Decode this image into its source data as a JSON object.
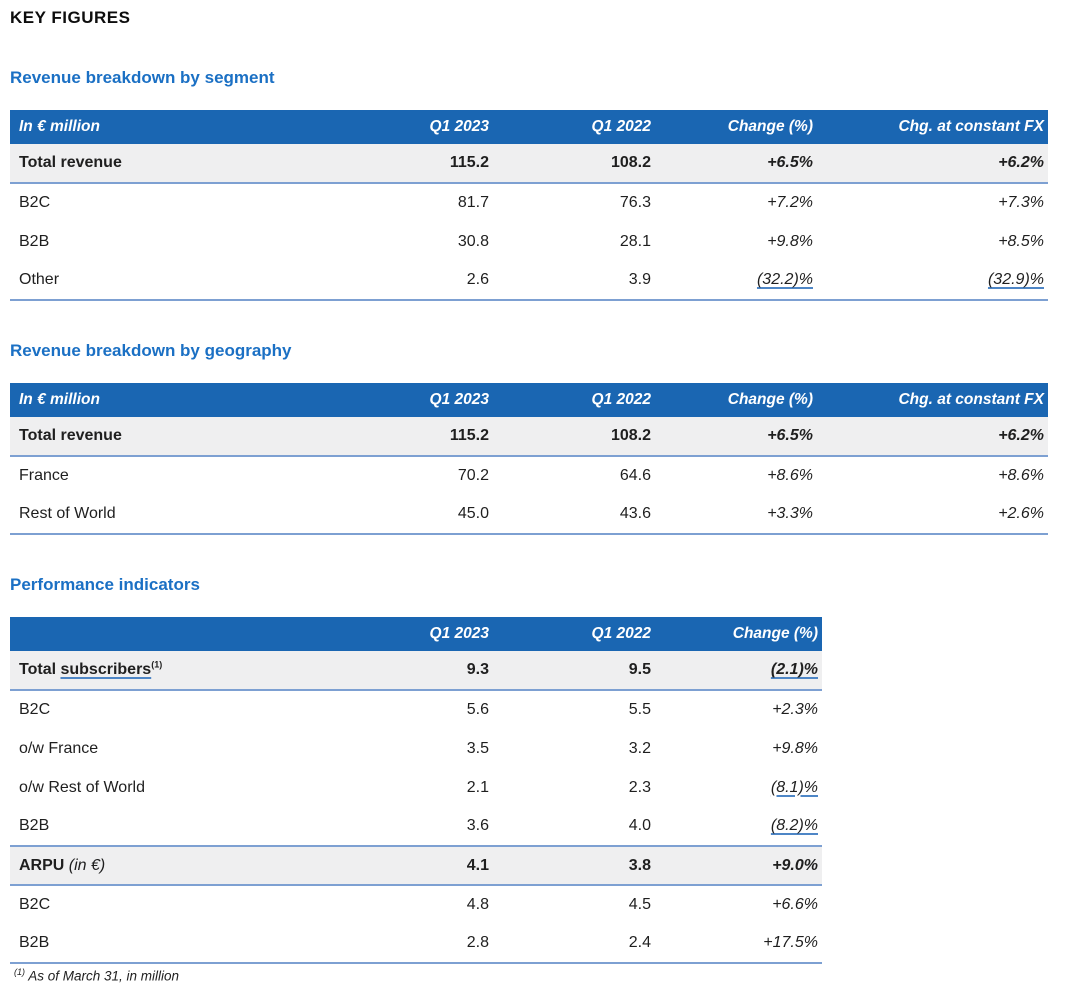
{
  "header": {
    "title": "KEY FIGURES"
  },
  "colors": {
    "accent_blue": "#1a66b2",
    "title_blue": "#1b70c4",
    "row_highlight": "#efeff0",
    "rule_blue": "#7da0d2",
    "underline_blue": "#4e86c6"
  },
  "tables": [
    {
      "section_title": "Revenue breakdown by segment",
      "unit_label": "In € million",
      "columns": [
        "Q1 2023",
        "Q1 2022",
        "Change (%)",
        "Chg. at constant FX"
      ],
      "rows": [
        {
          "label": "Total revenue",
          "emphasis": true,
          "values": [
            "115.2",
            "108.2",
            "+6.5%",
            "+6.2%"
          ]
        },
        {
          "label": "B2C",
          "values": [
            "81.7",
            "76.3",
            "+7.2%",
            "+7.3%"
          ]
        },
        {
          "label": "B2B",
          "values": [
            "30.8",
            "28.1",
            "+9.8%",
            "+8.5%"
          ]
        },
        {
          "label": "Other",
          "values": [
            "2.6",
            "3.9",
            "(32.2)%",
            "(32.9)%"
          ]
        }
      ]
    },
    {
      "section_title": "Revenue breakdown by geography",
      "unit_label": "In € million",
      "columns": [
        "Q1 2023",
        "Q1 2022",
        "Change (%)",
        "Chg. at constant FX"
      ],
      "rows": [
        {
          "label": "Total revenue",
          "emphasis": true,
          "values": [
            "115.2",
            "108.2",
            "+6.5%",
            "+6.2%"
          ]
        },
        {
          "label": "France",
          "values": [
            "70.2",
            "64.6",
            "+8.6%",
            "+8.6%"
          ]
        },
        {
          "label": "Rest of World",
          "values": [
            "45.0",
            "43.6",
            "+3.3%",
            "+2.6%"
          ]
        }
      ]
    },
    {
      "section_title": "Performance indicators",
      "unit_label": "",
      "columns": [
        "Q1 2023",
        "Q1 2022",
        "Change (%)"
      ],
      "rows": [
        {
          "label_parts": [
            {
              "text": "Total "
            },
            {
              "text": "subscribers",
              "underline": true
            }
          ],
          "sup": "(1)",
          "emphasis": true,
          "values": [
            "9.3",
            "9.5",
            "(2.1)%"
          ]
        },
        {
          "label": "B2C",
          "values": [
            "5.6",
            "5.5",
            "+2.3%"
          ]
        },
        {
          "label": "o/w France",
          "values": [
            "3.5",
            "3.2",
            "+9.8%"
          ]
        },
        {
          "label": "o/w Rest of World",
          "values": [
            "2.1",
            "2.3",
            "(8.1)%"
          ]
        },
        {
          "label": "B2B",
          "values": [
            "3.6",
            "4.0",
            "(8.2)%"
          ]
        },
        {
          "label_parts": [
            {
              "text": "ARPU"
            },
            {
              "text": " (in €)",
              "italic": true
            }
          ],
          "emphasis": true,
          "values": [
            "4.1",
            "3.8",
            "+9.0%"
          ]
        },
        {
          "label": "B2C",
          "values": [
            "4.8",
            "4.5",
            "+6.6%"
          ]
        },
        {
          "label": "B2B",
          "values": [
            "2.8",
            "2.4",
            "+17.5%"
          ]
        }
      ]
    }
  ],
  "footnote": {
    "marker": "(1)",
    "text": "As of March 31, in million"
  }
}
